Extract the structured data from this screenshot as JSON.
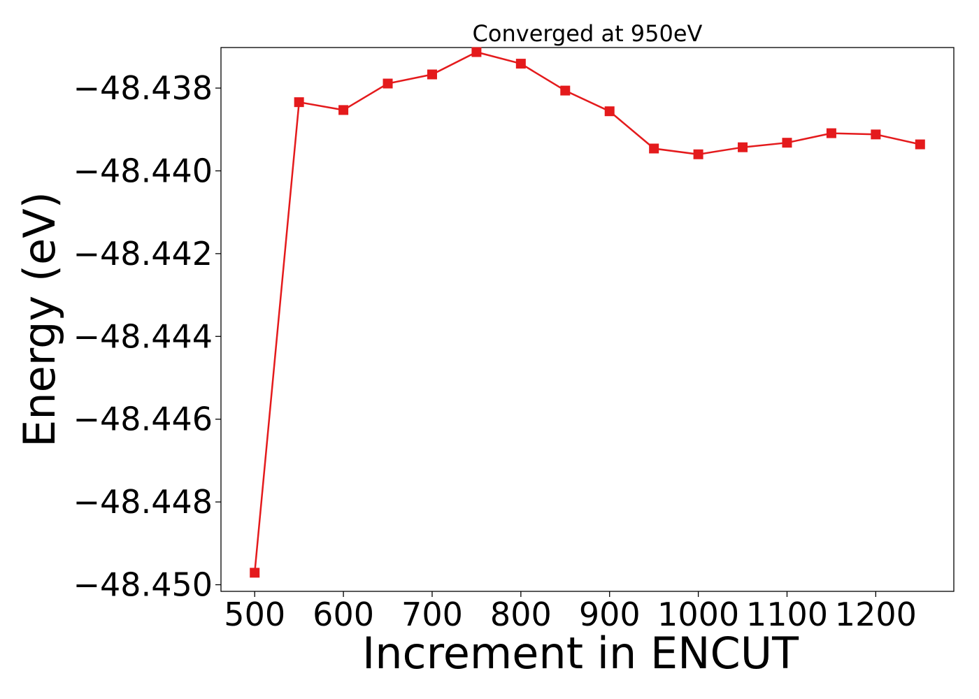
{
  "chart_data": {
    "type": "line",
    "title": "Converged at 950eV",
    "xlabel": "Increment in ENCUT",
    "ylabel": "Energy (eV)",
    "xlim": [
      462,
      1288
    ],
    "ylim": [
      -48.45016,
      -48.43702
    ],
    "x_ticks": [
      500,
      600,
      700,
      800,
      900,
      1000,
      1100,
      1200
    ],
    "x_tick_labels": [
      "500",
      "600",
      "700",
      "800",
      "900",
      "1000",
      "1100",
      "1200"
    ],
    "y_ticks": [
      -48.438,
      -48.44,
      -48.442,
      -48.444,
      -48.446,
      -48.448,
      -48.45
    ],
    "y_tick_labels": [
      "−48.438",
      "−48.440",
      "−48.442",
      "−48.444",
      "−48.446",
      "−48.448",
      "−48.450"
    ],
    "grid": false,
    "series": [
      {
        "color": "#e41a1c",
        "marker": "square",
        "x": [
          500,
          550,
          600,
          650,
          700,
          750,
          800,
          850,
          900,
          950,
          1000,
          1050,
          1100,
          1150,
          1200,
          1250
        ],
        "y": [
          -48.44971,
          -48.43834,
          -48.43853,
          -48.43789,
          -48.43767,
          -48.43713,
          -48.43741,
          -48.43806,
          -48.43856,
          -48.43946,
          -48.4396,
          -48.43943,
          -48.43932,
          -48.43909,
          -48.43912,
          -48.43936
        ]
      }
    ]
  }
}
